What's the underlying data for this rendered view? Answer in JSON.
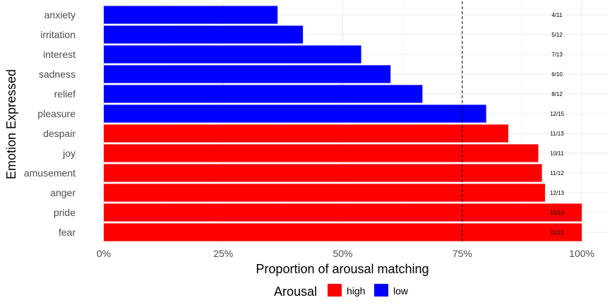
{
  "chart_data": {
    "type": "bar",
    "orientation": "horizontal",
    "xlabel": "Proportion of arousal matching",
    "ylabel": "Emotion Expressed",
    "xlim": [
      0,
      1
    ],
    "x_ticks": [
      "0%",
      "25%",
      "50%",
      "75%",
      "100%"
    ],
    "reference_line": 0.75,
    "grid": true,
    "legend": {
      "title": "Arousal",
      "placement": "bottom",
      "entries": [
        {
          "label": "high",
          "color": "#ff0000"
        },
        {
          "label": "low",
          "color": "#0000ff"
        }
      ]
    },
    "bars": [
      {
        "category": "anxiety",
        "value": 0.3636,
        "label": "4/11",
        "arousal": "low"
      },
      {
        "category": "irritation",
        "value": 0.4167,
        "label": "5/12",
        "arousal": "low"
      },
      {
        "category": "interest",
        "value": 0.5385,
        "label": "7/13",
        "arousal": "low"
      },
      {
        "category": "sadness",
        "value": 0.6,
        "label": "6/10",
        "arousal": "low"
      },
      {
        "category": "relief",
        "value": 0.6667,
        "label": "8/12",
        "arousal": "low"
      },
      {
        "category": "pleasure",
        "value": 0.8,
        "label": "12/15",
        "arousal": "low"
      },
      {
        "category": "despair",
        "value": 0.8462,
        "label": "11/13",
        "arousal": "high"
      },
      {
        "category": "joy",
        "value": 0.9091,
        "label": "10/11",
        "arousal": "high"
      },
      {
        "category": "amusement",
        "value": 0.9167,
        "label": "11/12",
        "arousal": "high"
      },
      {
        "category": "anger",
        "value": 0.9231,
        "label": "12/13",
        "arousal": "high"
      },
      {
        "category": "pride",
        "value": 1.0,
        "label": "10/10",
        "arousal": "high"
      },
      {
        "category": "fear",
        "value": 1.0,
        "label": "11/11",
        "arousal": "high"
      }
    ],
    "colors": {
      "high": "#ff0000",
      "low": "#0000ff"
    }
  }
}
